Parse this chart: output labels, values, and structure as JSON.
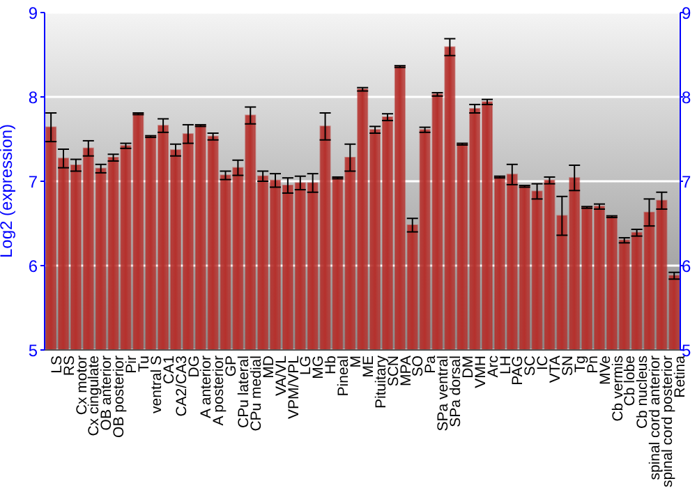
{
  "chart_data": {
    "type": "bar",
    "ylabel": "Log2 (expression)",
    "categories": [
      "LS",
      "RS",
      "Cx motor",
      "Cx cingulate",
      "OB anterior",
      "OB posterior",
      "Pir",
      "Tu",
      "ventral S",
      "CA1",
      "CA2/CA3",
      "DG",
      "A anterior",
      "A posterior",
      "GP",
      "CPu lateral",
      "CPu medial",
      "MD",
      "VA/VL",
      "VPM/VPL",
      "LG",
      "MG",
      "Hb",
      "Pineal",
      "M",
      "ME",
      "Pituitary",
      "SCN",
      "MPA",
      "SO",
      "Pa",
      "SPa ventral",
      "SPa dorsal",
      "DM",
      "VMH",
      "Arc",
      "LH",
      "PAG",
      "SC",
      "IC",
      "VTA",
      "SN",
      "Tg",
      "Pn",
      "MVe",
      "Cb vermis",
      "Cb lobe",
      "Cb nucleus",
      "spinal cord anterior",
      "spinal cord posterior",
      "Retina"
    ],
    "values": [
      7.64,
      7.27,
      7.19,
      7.39,
      7.15,
      7.28,
      7.42,
      7.8,
      7.53,
      7.66,
      7.37,
      7.56,
      7.66,
      7.53,
      7.07,
      7.16,
      7.78,
      7.06,
      7.01,
      6.95,
      6.98,
      6.98,
      7.65,
      7.04,
      7.28,
      8.09,
      7.61,
      7.76,
      8.36,
      6.48,
      7.61,
      8.03,
      8.59,
      7.44,
      7.86,
      7.94,
      7.05,
      7.08,
      6.94,
      6.88,
      7.01,
      6.59,
      7.04,
      6.69,
      6.7,
      6.58,
      6.3,
      6.39,
      6.63,
      6.77,
      5.88
    ],
    "errors": [
      0.17,
      0.11,
      0.07,
      0.09,
      0.05,
      0.04,
      0.03,
      0.01,
      0.01,
      0.08,
      0.07,
      0.11,
      0.01,
      0.04,
      0.05,
      0.09,
      0.1,
      0.06,
      0.08,
      0.09,
      0.08,
      0.11,
      0.16,
      0.01,
      0.16,
      0.02,
      0.04,
      0.04,
      0.01,
      0.08,
      0.03,
      0.02,
      0.1,
      0.01,
      0.05,
      0.03,
      0.01,
      0.12,
      0.01,
      0.09,
      0.04,
      0.23,
      0.15,
      0.01,
      0.03,
      0.01,
      0.03,
      0.04,
      0.16,
      0.1,
      0.04
    ],
    "color": "#b5302c",
    "ylim": [
      5,
      9
    ],
    "yticks": [
      5,
      6,
      7,
      8,
      9
    ],
    "y2lim": [
      5,
      9
    ],
    "y2ticks": [
      5,
      6,
      7,
      8,
      9
    ],
    "grid": "y"
  }
}
